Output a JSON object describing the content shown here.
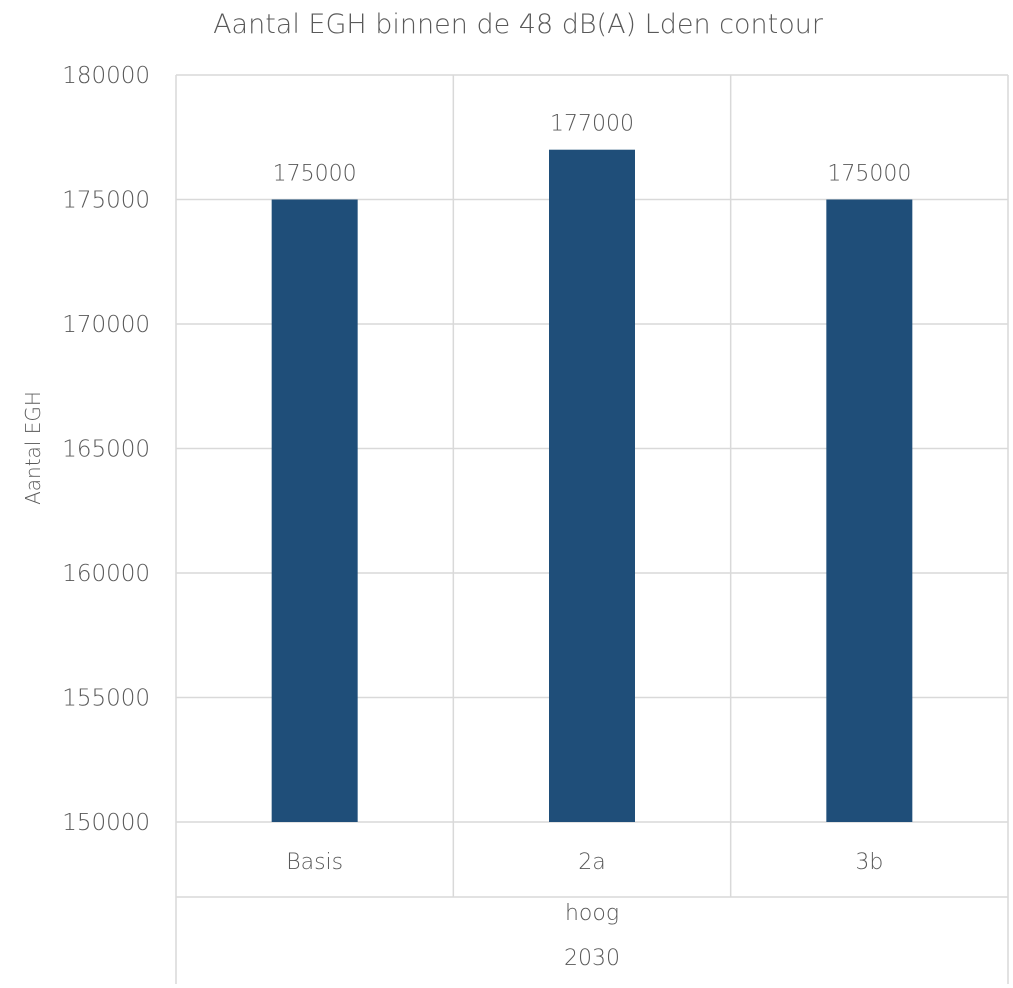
{
  "chart_data": {
    "type": "bar",
    "title": "Aantal EGH binnen de 48 dB(A) Lden contour",
    "ylabel": "Aantal EGH",
    "xlabel": "",
    "ylim": [
      150000,
      180000
    ],
    "yticks": [
      "150000",
      "155000",
      "160000",
      "165000",
      "170000",
      "175000",
      "180000"
    ],
    "categories": [
      "Basis",
      "2a",
      "3b"
    ],
    "group_labels": [
      "hoog",
      "2030"
    ],
    "values": [
      175000,
      177000,
      175000
    ],
    "data_labels": [
      "175000",
      "177000",
      "175000"
    ],
    "grid": true,
    "legend": "none",
    "colors": {
      "bar": "#1F4E79",
      "grid": "#D9D9D9",
      "text": "#595959"
    }
  }
}
